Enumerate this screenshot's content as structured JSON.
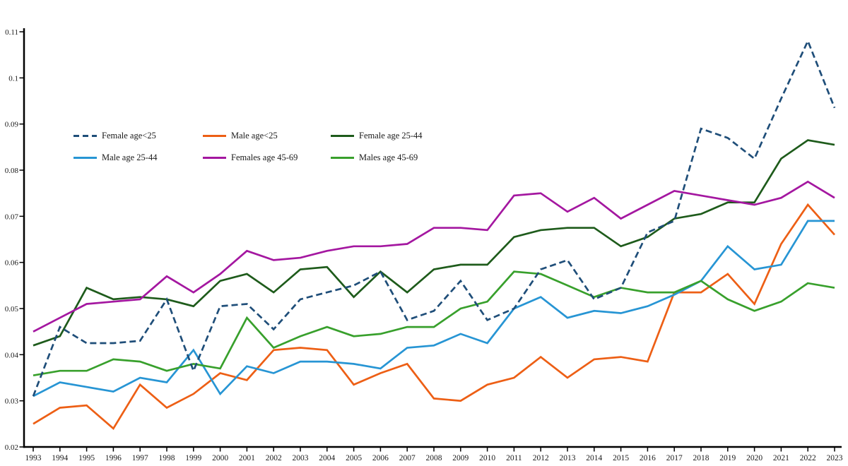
{
  "chart_data": {
    "type": "line",
    "title": "",
    "xlabel": "",
    "ylabel": "",
    "grid": false,
    "legend_position": "inside-top-left",
    "background_color": "#FFFFFF",
    "axis_color": "#000000",
    "text_color": "#1A1A1A",
    "ylim": [
      0.02,
      0.11
    ],
    "yticks": [
      0.02,
      0.03,
      0.04,
      0.05,
      0.06,
      0.07,
      0.08,
      0.09,
      0.1,
      0.11
    ],
    "ytick_labels": [
      "0.02",
      "0.03",
      "0.04",
      "0.05",
      "0.06",
      "0.07",
      "0.08",
      "0.09",
      "0.1",
      "0.11"
    ],
    "x": [
      1993,
      1994,
      1995,
      1996,
      1997,
      1998,
      1999,
      2000,
      2001,
      2002,
      2003,
      2004,
      2005,
      2006,
      2007,
      2008,
      2009,
      2010,
      2011,
      2012,
      2013,
      2014,
      2015,
      2016,
      2017,
      2018,
      2019,
      2020,
      2021,
      2022,
      2023
    ],
    "series": [
      {
        "name": "Female age<25",
        "color": "#1F4E79",
        "dash": "dashed",
        "values": [
          0.031,
          0.046,
          0.0425,
          0.0425,
          0.043,
          0.052,
          0.0365,
          0.0505,
          0.051,
          0.0455,
          0.052,
          0.0535,
          0.055,
          0.058,
          0.0475,
          0.0495,
          0.056,
          0.0475,
          0.05,
          0.0585,
          0.0605,
          0.052,
          0.0545,
          0.0665,
          0.069,
          0.089,
          0.087,
          0.0825,
          0.0955,
          0.108,
          0.0935
        ]
      },
      {
        "name": "Male age<25",
        "color": "#ED5F15",
        "dash": "solid",
        "values": [
          0.025,
          0.0285,
          0.029,
          0.024,
          0.0335,
          0.0285,
          0.0315,
          0.036,
          0.0345,
          0.041,
          0.0415,
          0.041,
          0.0335,
          0.036,
          0.038,
          0.0305,
          0.03,
          0.0335,
          0.035,
          0.0395,
          0.035,
          0.039,
          0.0395,
          0.0385,
          0.0535,
          0.0535,
          0.0575,
          0.051,
          0.064,
          0.0725,
          0.066
        ]
      },
      {
        "name": "Female age 25-44",
        "color": "#1E5B1B",
        "dash": "solid",
        "values": [
          0.042,
          0.044,
          0.0545,
          0.052,
          0.0525,
          0.052,
          0.0505,
          0.056,
          0.0575,
          0.0535,
          0.0585,
          0.059,
          0.0525,
          0.058,
          0.0535,
          0.0585,
          0.0595,
          0.0595,
          0.0655,
          0.067,
          0.0675,
          0.0675,
          0.0635,
          0.0655,
          0.0695,
          0.0705,
          0.073,
          0.073,
          0.0825,
          0.0865,
          0.0855
        ]
      },
      {
        "name": "Male age 25-44",
        "color": "#2795D4",
        "dash": "solid",
        "values": [
          0.031,
          0.034,
          0.033,
          0.032,
          0.035,
          0.034,
          0.041,
          0.0315,
          0.0375,
          0.036,
          0.0385,
          0.0385,
          0.038,
          0.037,
          0.0415,
          0.042,
          0.0445,
          0.0425,
          0.05,
          0.0525,
          0.048,
          0.0495,
          0.049,
          0.0505,
          0.053,
          0.056,
          0.0635,
          0.0585,
          0.0595,
          0.069,
          0.069
        ]
      },
      {
        "name": "Females age 45-69",
        "color": "#A417A0",
        "dash": "solid",
        "values": [
          0.045,
          0.048,
          0.051,
          0.0515,
          0.052,
          0.057,
          0.0535,
          0.0575,
          0.0625,
          0.0605,
          0.061,
          0.0625,
          0.0635,
          0.0635,
          0.064,
          0.0675,
          0.0675,
          0.067,
          0.0745,
          0.075,
          0.071,
          0.074,
          0.0695,
          0.0725,
          0.0755,
          0.0745,
          0.0735,
          0.0725,
          0.074,
          0.0775,
          0.074
        ]
      },
      {
        "name": "Males age 45-69",
        "color": "#38A02C",
        "dash": "solid",
        "values": [
          0.0355,
          0.0365,
          0.0365,
          0.039,
          0.0385,
          0.0365,
          0.038,
          0.037,
          0.048,
          0.0415,
          0.044,
          0.046,
          0.044,
          0.0445,
          0.046,
          0.046,
          0.05,
          0.0515,
          0.058,
          0.0575,
          0.055,
          0.0525,
          0.0545,
          0.0535,
          0.0535,
          0.056,
          0.052,
          0.0495,
          0.0515,
          0.0555,
          0.0545
        ]
      }
    ]
  }
}
